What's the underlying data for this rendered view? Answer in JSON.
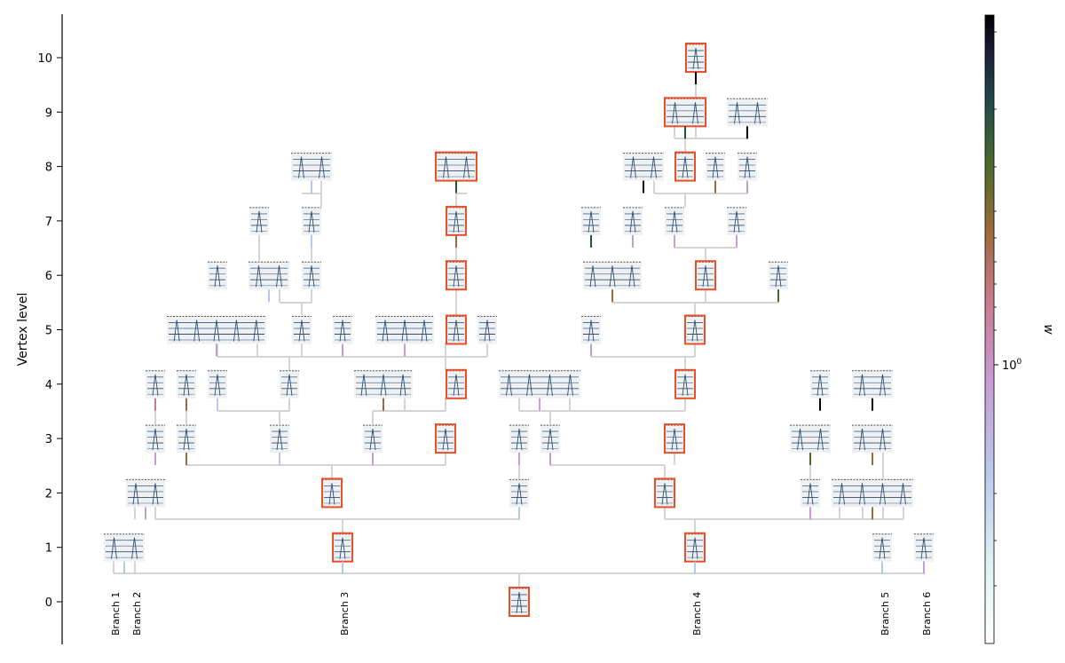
{
  "axis": {
    "ylabel": "Vertex level",
    "ticks": [
      "0",
      "1",
      "2",
      "3",
      "4",
      "5",
      "6",
      "7",
      "8",
      "9",
      "10"
    ]
  },
  "branches": [
    "Branch 1",
    "Branch 2",
    "Branch 3",
    "Branch 4",
    "Branch 5",
    "Branch 6"
  ],
  "colorbar": {
    "label": "w",
    "tick_label": "10",
    "tick_exponent": "0",
    "scale": "log",
    "colormap": "cubehelix (white → purple → green → black)"
  },
  "colors": {
    "edge": "#d4d4d4",
    "highlight": "#e8502a",
    "thumbnail_bg": "#eef0f2",
    "trace": "#4a6f96"
  }
}
